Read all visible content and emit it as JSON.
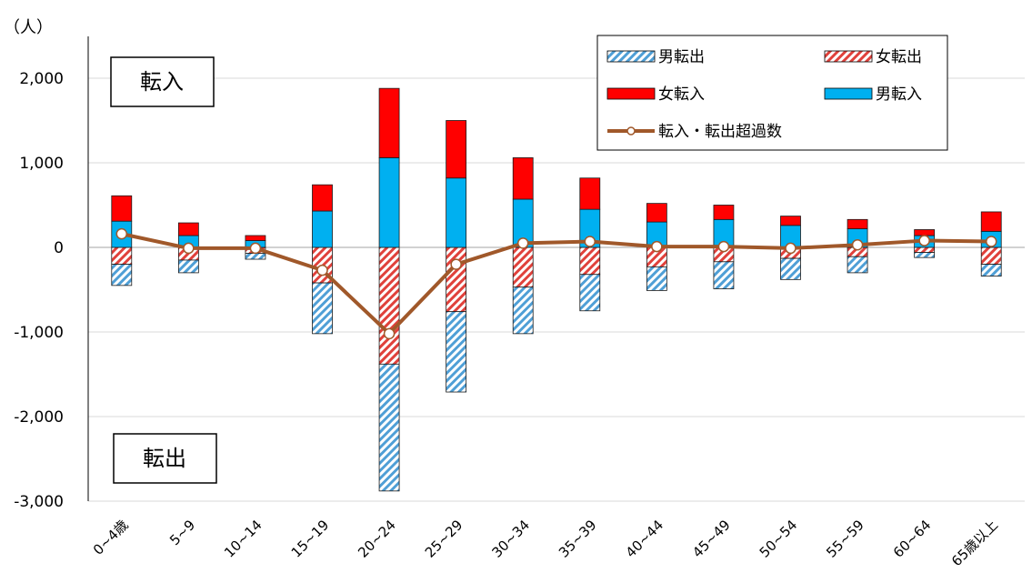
{
  "chart_data": {
    "type": "bar",
    "title": "",
    "xlabel": "",
    "ylabel": "",
    "y_unit": "（人）",
    "ylim": [
      -3000,
      2000
    ],
    "y_ticks": [
      "2,000",
      "1,000",
      "0",
      "-1,000",
      "-2,000",
      "-3,000"
    ],
    "grid": true,
    "legend_position": "top-right",
    "annotations": {
      "in_label": "転入",
      "out_label": "転出"
    },
    "categories": [
      "0~4歳",
      "5~9",
      "10~14",
      "15~19",
      "20~24",
      "25~29",
      "30~34",
      "35~39",
      "40~44",
      "45~49",
      "50~54",
      "55~59",
      "60~64",
      "65歳以上"
    ],
    "series": [
      {
        "name": "男転出",
        "values": [
          -250,
          -150,
          -70,
          -600,
          -1500,
          -950,
          -550,
          -430,
          -280,
          -320,
          -250,
          -190,
          -60,
          -140
        ],
        "color": "#4f9fd6",
        "pattern": "hatch"
      },
      {
        "name": "女転出",
        "values": [
          -200,
          -150,
          -70,
          -420,
          -1380,
          -760,
          -470,
          -320,
          -230,
          -170,
          -130,
          -110,
          -60,
          -200
        ],
        "color": "#e0413b",
        "pattern": "hatch"
      },
      {
        "name": "女転入",
        "values": [
          300,
          150,
          60,
          310,
          820,
          680,
          490,
          370,
          220,
          170,
          110,
          110,
          70,
          230
        ],
        "color": "#ff0000",
        "pattern": "solid"
      },
      {
        "name": "男転入",
        "values": [
          310,
          140,
          80,
          430,
          1060,
          820,
          570,
          450,
          300,
          330,
          260,
          220,
          140,
          190
        ],
        "color": "#00b0f0",
        "pattern": "solid"
      },
      {
        "name": "転入・転出超過数",
        "type": "line",
        "values": [
          160,
          -10,
          -10,
          -270,
          -1020,
          -200,
          50,
          70,
          10,
          10,
          -10,
          30,
          80,
          70
        ],
        "color": "#a0582a"
      }
    ]
  }
}
